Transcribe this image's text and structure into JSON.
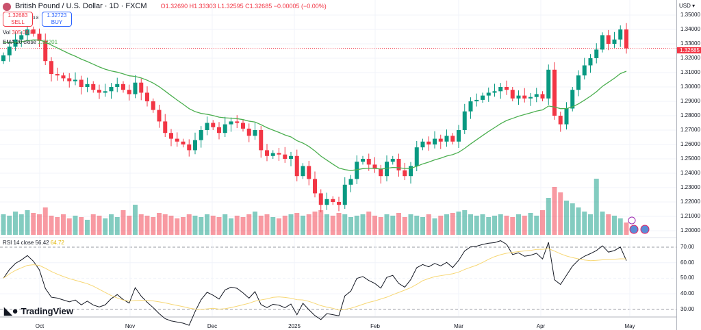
{
  "header": {
    "title": "British Pound / U.S. Dollar · 1D · FXCM",
    "ohlc": "O1.32690 H1.33303 L1.32595 C1.32685 −0.00005 (−0.00%)"
  },
  "trade": {
    "sell_price": "1.32683",
    "sell_label": "SELL",
    "spread": "3.8",
    "buy_price": "1.32723",
    "buy_label": "BUY"
  },
  "indicators": {
    "vol_label": "Vol",
    "vol_value": "305.06 K",
    "ema_label": "EMA 20 close",
    "ema_value": "1.32201",
    "rsi_label": "RSI 14 close",
    "rsi_value": "56.42",
    "rsi_ma_value": "64.72"
  },
  "axis": {
    "currency": "USD",
    "current_price": "1.32685"
  },
  "brand": "TradingView",
  "colors": {
    "up": "#089981",
    "down": "#f23645",
    "ema": "#4caf50",
    "rsi": "#131722",
    "rsi_ma": "#f7d774"
  },
  "chart_data": {
    "type": "candlestick",
    "title": "British Pound / U.S. Dollar · 1D · FXCM",
    "ylim": [
      1.195,
      1.352
    ],
    "price_ticks": [
      "1.35000",
      "1.34000",
      "1.33000",
      "1.32000",
      "1.31000",
      "1.30000",
      "1.29000",
      "1.28000",
      "1.27000",
      "1.26000",
      "1.25000",
      "1.24000",
      "1.23000",
      "1.22000",
      "1.21000",
      "1.20000"
    ],
    "rsi_ticks": [
      "70.00",
      "60.00",
      "50.00",
      "40.00",
      "30.00"
    ],
    "time_labels": [
      "Oct",
      "Nov",
      "Dec",
      "2025",
      "Feb",
      "Mar",
      "Apr",
      "May"
    ],
    "closes": [
      1.322,
      1.328,
      1.333,
      1.336,
      1.34,
      1.337,
      1.332,
      1.318,
      1.309,
      1.308,
      1.306,
      1.304,
      1.305,
      1.3,
      1.302,
      1.298,
      1.296,
      1.297,
      1.3,
      1.302,
      1.298,
      1.295,
      1.303,
      1.296,
      1.29,
      1.284,
      1.276,
      1.268,
      1.264,
      1.262,
      1.26,
      1.256,
      1.263,
      1.27,
      1.275,
      1.272,
      1.268,
      1.274,
      1.276,
      1.275,
      1.271,
      1.266,
      1.27,
      1.256,
      1.252,
      1.254,
      1.253,
      1.25,
      1.252,
      1.238,
      1.245,
      1.236,
      1.226,
      1.218,
      1.222,
      1.22,
      1.218,
      1.232,
      1.236,
      1.248,
      1.25,
      1.246,
      1.243,
      1.238,
      1.248,
      1.25,
      1.242,
      1.238,
      1.245,
      1.258,
      1.262,
      1.26,
      1.264,
      1.262,
      1.266,
      1.262,
      1.27,
      1.283,
      1.29,
      1.291,
      1.294,
      1.296,
      1.297,
      1.3,
      1.298,
      1.292,
      1.294,
      1.292,
      1.293,
      1.295,
      1.292,
      1.312,
      1.28,
      1.274,
      1.285,
      1.298,
      1.308,
      1.315,
      1.32,
      1.326,
      1.336,
      1.33,
      1.333,
      1.34,
      1.3268
    ],
    "volume": [
      30,
      28,
      34,
      30,
      36,
      32,
      30,
      40,
      28,
      26,
      30,
      24,
      28,
      26,
      22,
      30,
      28,
      24,
      30,
      26,
      36,
      28,
      44,
      30,
      28,
      26,
      32,
      30,
      28,
      24,
      26,
      30,
      28,
      26,
      30,
      28,
      26,
      30,
      24,
      28,
      26,
      30,
      34,
      28,
      30,
      26,
      24,
      28,
      30,
      32,
      28,
      30,
      34,
      36,
      30,
      28,
      32,
      30,
      26,
      28,
      30,
      34,
      28,
      26,
      30,
      28,
      32,
      26,
      30,
      28,
      26,
      30,
      24,
      28,
      30,
      32,
      34,
      36,
      30,
      28,
      30,
      26,
      28,
      30,
      28,
      26,
      30,
      28,
      32,
      28,
      36,
      54,
      70,
      62,
      50,
      46,
      40,
      34,
      30,
      82,
      34,
      30,
      28,
      24,
      18
    ]
  }
}
